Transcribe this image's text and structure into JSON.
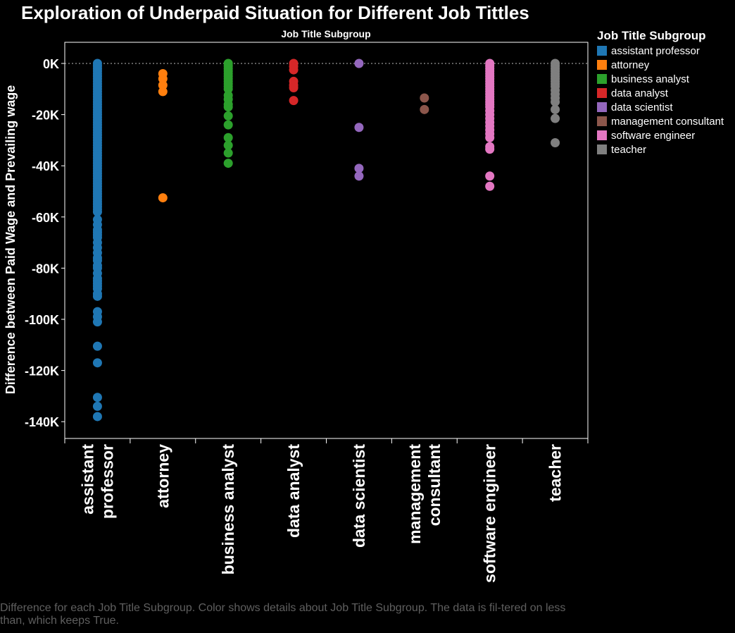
{
  "title": "Exploration of Underpaid Situation for Different Job Tittles",
  "caption": "Difference for each Job Title Subgroup.  Color shows details about Job Title Subgroup. The data is fil-tered on less than, which keeps True.",
  "colors": {
    "background": "#000000",
    "axis": "#ffffff",
    "caption": "#5f5f5f"
  },
  "legend": {
    "title": "Job Title Subgroup",
    "placement": "right",
    "items": [
      {
        "label": "assistant professor",
        "color": "#1f77b4"
      },
      {
        "label": "attorney",
        "color": "#ff7f0e"
      },
      {
        "label": "business analyst",
        "color": "#2ca02c"
      },
      {
        "label": "data analyst",
        "color": "#d62728"
      },
      {
        "label": "data scientist",
        "color": "#9467bd"
      },
      {
        "label": "management consultant",
        "color": "#8c564b"
      },
      {
        "label": "software engineer",
        "color": "#e377c2"
      },
      {
        "label": "teacher",
        "color": "#7f7f7f"
      }
    ]
  },
  "chart_data": {
    "type": "scatter",
    "title": "Exploration of Underpaid Situation for Different Job Tittles",
    "column_header": "Job Title Subgroup",
    "xlabel": "",
    "ylabel": "Difference between Paid Wage and Prevailing wage",
    "ylim": [
      -145000,
      8000
    ],
    "yticks": [
      0,
      -20000,
      -40000,
      -60000,
      -80000,
      -100000,
      -120000,
      -140000
    ],
    "ytick_labels": [
      "0K",
      "-20K",
      "-40K",
      "-60K",
      "-80K",
      "-100K",
      "-120K",
      "-140K"
    ],
    "grid": false,
    "zero_line": true,
    "categories": [
      {
        "label": [
          "assistant",
          "professor"
        ],
        "name": "assistant professor"
      },
      {
        "label": [
          "attorney"
        ],
        "name": "attorney"
      },
      {
        "label": [
          "business analyst"
        ],
        "name": "business analyst"
      },
      {
        "label": [
          "data analyst"
        ],
        "name": "data analyst"
      },
      {
        "label": [
          "data scientist"
        ],
        "name": "data scientist"
      },
      {
        "label": [
          "management",
          "consultant"
        ],
        "name": "management consultant"
      },
      {
        "label": [
          "software engineer"
        ],
        "name": "software engineer"
      },
      {
        "label": [
          "teacher"
        ],
        "name": "teacher"
      }
    ],
    "series": [
      {
        "name": "assistant professor",
        "color": "#1f77b4",
        "values": [
          0,
          -1000,
          -2000,
          -3000,
          -4000,
          -5000,
          -6000,
          -7000,
          -8000,
          -9000,
          -10000,
          -11000,
          -12000,
          -13000,
          -14000,
          -15000,
          -16000,
          -17000,
          -18000,
          -19000,
          -20000,
          -21000,
          -22000,
          -23000,
          -24000,
          -25000,
          -26000,
          -27000,
          -28000,
          -29000,
          -30000,
          -31000,
          -32000,
          -33000,
          -34000,
          -35000,
          -36000,
          -37000,
          -38000,
          -39000,
          -40000,
          -41000,
          -42000,
          -43000,
          -44000,
          -45000,
          -46000,
          -47000,
          -48000,
          -49000,
          -50000,
          -51000,
          -52000,
          -53000,
          -54000,
          -55000,
          -56000,
          -57000,
          -58000,
          -61000,
          -63000,
          -65000,
          -66000,
          -67000,
          -68000,
          -70000,
          -72000,
          -74000,
          -76000,
          -77000,
          -79000,
          -80000,
          -82000,
          -84000,
          -85000,
          -86000,
          -87000,
          -88000,
          -90000,
          -91000,
          -97000,
          -99000,
          -101000,
          -110500,
          -117000,
          -130500,
          -134000,
          -138000
        ]
      },
      {
        "name": "attorney",
        "color": "#ff7f0e",
        "values": [
          -4000,
          -6000,
          -8500,
          -11000,
          -52500
        ]
      },
      {
        "name": "business analyst",
        "color": "#2ca02c",
        "values": [
          0,
          -1000,
          -2000,
          -3000,
          -4000,
          -5000,
          -6000,
          -7000,
          -8000,
          -9000,
          -10000,
          -12500,
          -14000,
          -16000,
          -17000,
          -20500,
          -24000,
          -29000,
          -32000,
          -35000,
          -39000
        ]
      },
      {
        "name": "data analyst",
        "color": "#d62728",
        "values": [
          0,
          -1200,
          -2500,
          -7000,
          -8500,
          -9500,
          -14500
        ]
      },
      {
        "name": "data scientist",
        "color": "#9467bd",
        "values": [
          0,
          -25000,
          -41000,
          -44000
        ]
      },
      {
        "name": "management consultant",
        "color": "#8c564b",
        "values": [
          -13500,
          -18000
        ]
      },
      {
        "name": "software engineer",
        "color": "#e377c2",
        "values": [
          0,
          -1000,
          -2000,
          -3000,
          -4000,
          -5000,
          -6000,
          -7000,
          -8000,
          -9000,
          -10000,
          -11000,
          -12000,
          -13000,
          -14000,
          -15000,
          -16000,
          -17000,
          -18500,
          -20000,
          -21500,
          -23000,
          -24500,
          -26000,
          -27500,
          -29000,
          -32500,
          -33500,
          -44000,
          -48000
        ]
      },
      {
        "name": "teacher",
        "color": "#7f7f7f",
        "values": [
          0,
          -1000,
          -2000,
          -3000,
          -4000,
          -5000,
          -6000,
          -7000,
          -8000,
          -9000,
          -10500,
          -12000,
          -13500,
          -15000,
          -18000,
          -21500,
          -31000
        ]
      }
    ]
  }
}
